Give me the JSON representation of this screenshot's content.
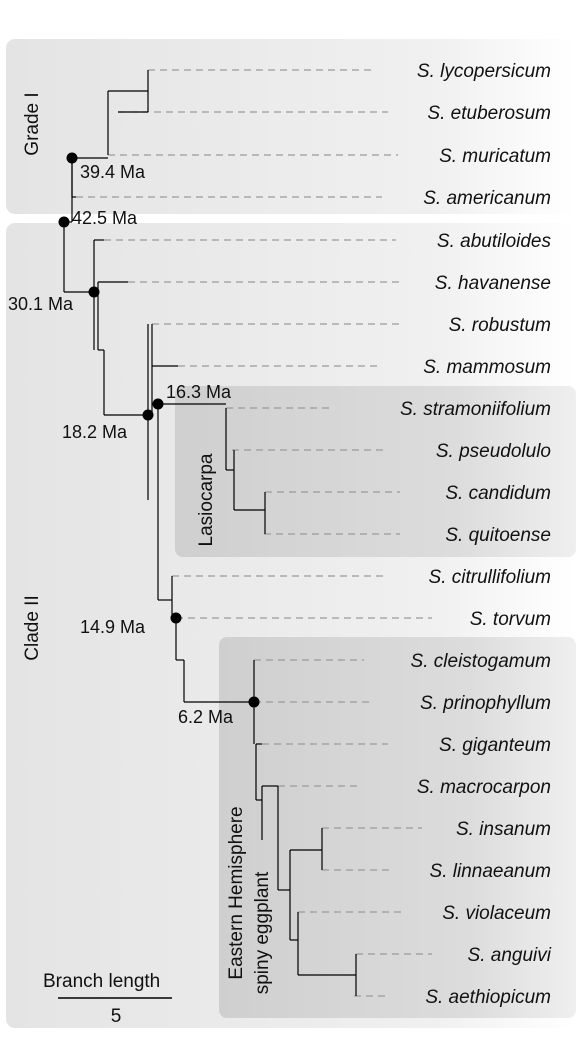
{
  "groups": {
    "grade1": "Grade I",
    "clade2": "Clade II",
    "lasiocarpa": "Lasiocarpa",
    "eastern_line1": "Eastern Hemisphere",
    "eastern_line2": "spiny eggplant"
  },
  "taxa": [
    "S. lycopersicum",
    "S. etuberosum",
    "S. muricatum",
    "S. americanum",
    "S. abutiloides",
    "S. havanense",
    "S. robustum",
    "S. mammosum",
    "S. stramoniifolium",
    "S. pseudolulo",
    "S. candidum",
    "S. quitoense",
    "S. citrullifolium",
    "S. torvum",
    "S. cleistogamum",
    "S. prinophyllum",
    "S. giganteum",
    "S. macrocarpon",
    "S. insanum",
    "S. linnaeanum",
    "S. violaceum",
    "S. anguivi",
    "S. aethiopicum"
  ],
  "node_labels": {
    "n39": "39.4 Ma",
    "n42": "42.5 Ma",
    "n30": "30.1 Ma",
    "n18": "18.2 Ma",
    "n16": "16.3 Ma",
    "n14": "14.9 Ma",
    "n6": "6.2 Ma"
  },
  "scale": {
    "title": "Branch length",
    "value": "5"
  },
  "colors": {
    "panel_light": "#ececec",
    "panel_dark": "#d6d6d6",
    "branch": "#000000",
    "guide": "#9a9a9a"
  }
}
